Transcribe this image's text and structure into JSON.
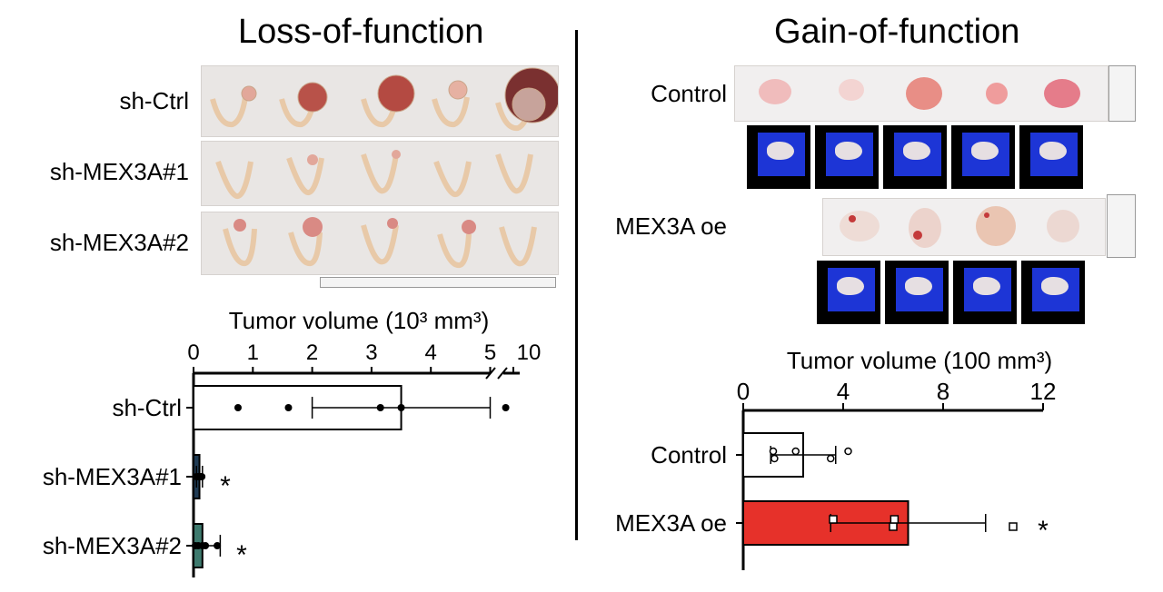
{
  "left_panel": {
    "title": "Loss-of-function",
    "row_labels": [
      "sh-Ctrl",
      "sh-MEX3A#1",
      "sh-MEX3A#2"
    ]
  },
  "right_panel": {
    "title": "Gain-of-function",
    "row_labels": [
      "Control",
      "MEX3A oe"
    ]
  },
  "chart_data": [
    {
      "type": "bar",
      "orientation": "horizontal",
      "xlabel": "Tumor volume (10³ mm³)",
      "categories": [
        "sh-Ctrl",
        "sh-MEX3A#1",
        "sh-MEX3A#2"
      ],
      "values": [
        3.5,
        0.1,
        0.15
      ],
      "error": [
        1.5,
        0.05,
        0.3
      ],
      "points": [
        [
          0.75,
          1.6,
          3.15,
          3.5,
          9.7
        ],
        [
          0.05,
          0.08,
          0.1,
          0.12,
          0.14
        ],
        [
          0.03,
          0.08,
          0.15,
          0.2,
          0.4
        ]
      ],
      "xticks": [
        "0",
        "1",
        "2",
        "3",
        "4",
        "5",
        "10"
      ],
      "axis_break": [
        5.5,
        9
      ],
      "significance": [
        "",
        "*",
        "*"
      ],
      "colors": [
        "#ffffff",
        "#1f3b54",
        "#3e7a6e"
      ],
      "grid": false
    },
    {
      "type": "bar",
      "orientation": "horizontal",
      "xlabel": "Tumor volume (100 mm³)",
      "categories": [
        "Control",
        "MEX3A oe"
      ],
      "values": [
        2.4,
        6.6
      ],
      "error": [
        1.3,
        3.1
      ],
      "points": [
        [
          1.2,
          1.25,
          2.1,
          3.5,
          4.2
        ],
        [
          3.6,
          6.0,
          6.05,
          10.8
        ]
      ],
      "xlim": [
        0,
        12
      ],
      "xticks": [
        "0",
        "4",
        "8",
        "12"
      ],
      "significance": [
        "",
        "*"
      ],
      "colors": [
        "#ffffff",
        "#e6312a"
      ],
      "grid": false
    }
  ]
}
